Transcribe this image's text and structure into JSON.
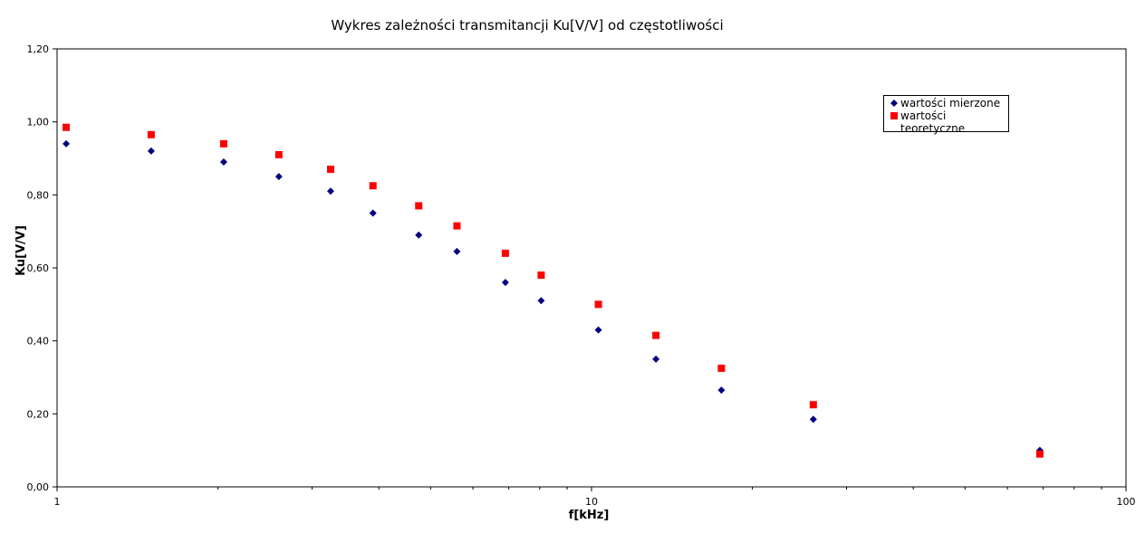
{
  "chart_data": {
    "type": "scatter",
    "title": "Wykres zależności transmitancji Ku[V/V] od częstotliwości",
    "xlabel": "f[kHz]",
    "ylabel": "Ku[V/V]",
    "x_scale": "log",
    "xlim": [
      1,
      100
    ],
    "ylim": [
      0,
      1.2
    ],
    "x_ticks": [
      "1",
      "10",
      "100"
    ],
    "y_ticks": [
      "0,00",
      "0,20",
      "0,40",
      "0,60",
      "0,80",
      "1,00",
      "1,20"
    ],
    "grid": false,
    "legend_position": "top-right",
    "series": [
      {
        "name": "wartości mierzone",
        "marker": "diamond",
        "color": "#000080",
        "x": [
          1.04,
          1.5,
          2.05,
          2.6,
          3.25,
          3.9,
          4.75,
          5.6,
          6.9,
          8.05,
          10.3,
          13.2,
          17.5,
          26,
          69
        ],
        "y": [
          0.94,
          0.92,
          0.89,
          0.85,
          0.81,
          0.75,
          0.69,
          0.645,
          0.56,
          0.51,
          0.43,
          0.35,
          0.265,
          0.185,
          0.1
        ]
      },
      {
        "name": "wartości teoretyczne",
        "marker": "square",
        "color": "#ff0000",
        "x": [
          1.04,
          1.5,
          2.05,
          2.6,
          3.25,
          3.9,
          4.75,
          5.6,
          6.9,
          8.05,
          10.3,
          13.2,
          17.5,
          26,
          69
        ],
        "y": [
          0.985,
          0.965,
          0.94,
          0.91,
          0.87,
          0.825,
          0.77,
          0.715,
          0.64,
          0.58,
          0.5,
          0.415,
          0.325,
          0.225,
          0.09
        ]
      }
    ]
  },
  "legend": {
    "items": [
      "wartości mierzone",
      "wartości teoretyczne"
    ]
  }
}
